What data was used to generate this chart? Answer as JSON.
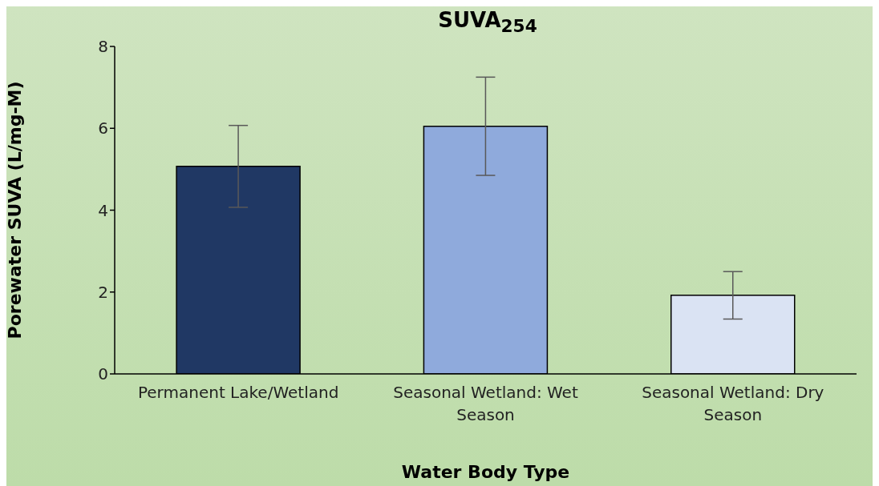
{
  "chart_data": {
    "type": "bar",
    "title": "SUVA$_{254}$",
    "xlabel": "Water Body Type",
    "ylabel": "Porewater SUVA (L/mg-M)",
    "categories": [
      "Permanent Lake/Wetland",
      "Seasonal Wetland: Wet Season",
      "Seasonal Wetland: Dry Season"
    ],
    "values": [
      5.07,
      6.05,
      1.92
    ],
    "errors": [
      1.0,
      1.2,
      0.58
    ],
    "colors": [
      "#203864",
      "#8faadc",
      "#dae3f3"
    ],
    "ylim": [
      0,
      8
    ],
    "yticks": [
      0,
      2,
      4,
      6,
      8
    ],
    "grid": false,
    "legend": false
  }
}
